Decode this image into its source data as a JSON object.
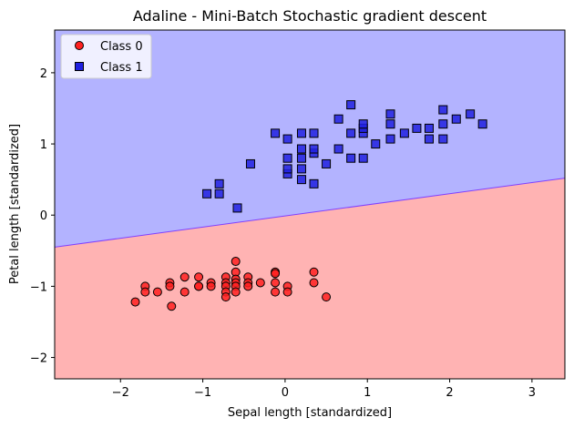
{
  "chart_data": {
    "type": "scatter",
    "title": "Adaline - Mini-Batch Stochastic gradient descent",
    "xlabel": "Sepal length [standardized]",
    "ylabel": "Petal length [standardized]",
    "xlim": [
      -2.8,
      3.4
    ],
    "ylim": [
      -2.3,
      2.6
    ],
    "xticks": [
      -2,
      -1,
      0,
      1,
      2,
      3
    ],
    "xtick_labels": [
      "−2",
      "−1",
      "0",
      "1",
      "2",
      "3"
    ],
    "yticks": [
      -2,
      -1,
      0,
      1,
      2
    ],
    "yticick_note": "",
    "ytick_labels": [
      "−2",
      "−1",
      "0",
      "1",
      "2"
    ],
    "grid": false,
    "legend_position": "top-left",
    "decision_boundary": {
      "points": [
        [
          -2.8,
          -0.45
        ],
        [
          3.4,
          0.52
        ]
      ],
      "region_above_color": "#b3b3ff",
      "region_below_color": "#ffb3b3",
      "boundary_color": "#8040ff"
    },
    "series": [
      {
        "name": "Class 0",
        "marker": "circle",
        "color": "#ff2020",
        "points": [
          [
            -1.82,
            -1.22
          ],
          [
            -1.7,
            -1.0
          ],
          [
            -1.7,
            -1.08
          ],
          [
            -1.55,
            -1.08
          ],
          [
            -1.4,
            -0.95
          ],
          [
            -1.4,
            -1.0
          ],
          [
            -1.38,
            -1.28
          ],
          [
            -1.22,
            -0.87
          ],
          [
            -1.22,
            -1.08
          ],
          [
            -1.05,
            -0.87
          ],
          [
            -1.05,
            -1.0
          ],
          [
            -1.05,
            -1.0
          ],
          [
            -0.9,
            -0.95
          ],
          [
            -0.9,
            -1.0
          ],
          [
            -0.72,
            -0.87
          ],
          [
            -0.72,
            -0.95
          ],
          [
            -0.72,
            -1.0
          ],
          [
            -0.72,
            -1.08
          ],
          [
            -0.72,
            -1.15
          ],
          [
            -0.6,
            -0.65
          ],
          [
            -0.6,
            -0.8
          ],
          [
            -0.6,
            -0.9
          ],
          [
            -0.6,
            -0.95
          ],
          [
            -0.6,
            -1.0
          ],
          [
            -0.6,
            -1.08
          ],
          [
            -0.45,
            -0.87
          ],
          [
            -0.45,
            -0.95
          ],
          [
            -0.45,
            -1.0
          ],
          [
            -0.3,
            -0.95
          ],
          [
            -0.12,
            -0.8
          ],
          [
            -0.12,
            -0.82
          ],
          [
            -0.12,
            -0.95
          ],
          [
            -0.12,
            -1.08
          ],
          [
            0.03,
            -1.0
          ],
          [
            0.03,
            -1.08
          ],
          [
            0.35,
            -0.8
          ],
          [
            0.35,
            -0.95
          ],
          [
            0.5,
            -1.15
          ]
        ]
      },
      {
        "name": "Class 1",
        "marker": "square",
        "color": "#2020e0",
        "points": [
          [
            -0.95,
            0.3
          ],
          [
            -0.8,
            0.3
          ],
          [
            -0.8,
            0.44
          ],
          [
            -0.58,
            0.1
          ],
          [
            -0.42,
            0.72
          ],
          [
            -0.12,
            1.15
          ],
          [
            0.03,
            0.58
          ],
          [
            0.03,
            0.65
          ],
          [
            0.03,
            0.8
          ],
          [
            0.03,
            1.07
          ],
          [
            0.2,
            0.5
          ],
          [
            0.2,
            0.65
          ],
          [
            0.2,
            0.8
          ],
          [
            0.2,
            0.93
          ],
          [
            0.2,
            1.15
          ],
          [
            0.35,
            0.44
          ],
          [
            0.35,
            0.87
          ],
          [
            0.35,
            0.93
          ],
          [
            0.35,
            1.15
          ],
          [
            0.5,
            0.72
          ],
          [
            0.65,
            0.93
          ],
          [
            0.65,
            1.35
          ],
          [
            0.8,
            0.8
          ],
          [
            0.8,
            1.15
          ],
          [
            0.8,
            1.55
          ],
          [
            0.95,
            0.8
          ],
          [
            0.95,
            1.15
          ],
          [
            0.95,
            1.22
          ],
          [
            0.95,
            1.28
          ],
          [
            1.1,
            1.0
          ],
          [
            1.28,
            1.07
          ],
          [
            1.28,
            1.28
          ],
          [
            1.28,
            1.42
          ],
          [
            1.45,
            1.15
          ],
          [
            1.6,
            1.22
          ],
          [
            1.75,
            1.07
          ],
          [
            1.75,
            1.22
          ],
          [
            1.92,
            1.07
          ],
          [
            1.92,
            1.28
          ],
          [
            1.92,
            1.48
          ],
          [
            2.08,
            1.35
          ],
          [
            2.25,
            1.42
          ],
          [
            2.4,
            1.28
          ]
        ]
      }
    ]
  }
}
